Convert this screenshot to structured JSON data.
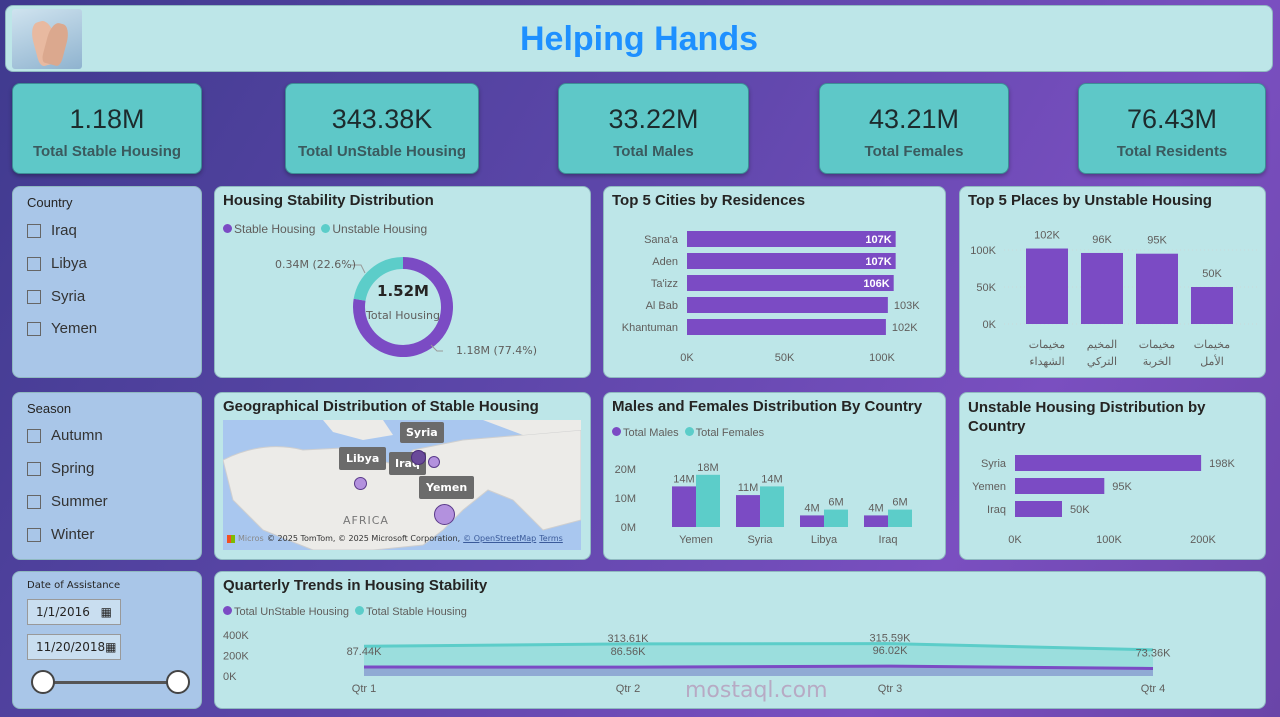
{
  "header": {
    "title": "Helping Hands",
    "logo": "praying-hands-photo"
  },
  "kpis": [
    {
      "value": "1.18M",
      "label": "Total Stable Housing"
    },
    {
      "value": "343.38K",
      "label": "Total UnStable Housing"
    },
    {
      "value": "33.22M",
      "label": "Total Males"
    },
    {
      "value": "43.21M",
      "label": "Total Females"
    },
    {
      "value": "76.43M",
      "label": "Total Residents"
    }
  ],
  "country_slicer": {
    "title": "Country",
    "options": [
      "Iraq",
      "Libya",
      "Syria",
      "Yemen"
    ]
  },
  "season_slicer": {
    "title": "Season",
    "options": [
      "Autumn",
      "Spring",
      "Summer",
      "Winter"
    ]
  },
  "date_slicer": {
    "title": "Date of Assistance",
    "start": "1/1/2016",
    "end": "11/20/2018",
    "icon": "calendar-icon",
    "range_fraction": [
      0,
      1
    ]
  },
  "colors": {
    "purple": "#7b4bc4",
    "teal": "#5ccdc9",
    "title_blue": "#1e90ff",
    "card": "#bde6e8",
    "kpi": "#5ec8c8"
  },
  "map": {
    "title": "Geographical Distribution of Stable Housing",
    "labels": [
      "Syria",
      "Libya",
      "Iraq",
      "Yemen"
    ],
    "africa_label": "AFRICA",
    "attribution": "© 2025 TomTom, © 2025 Microsoft Corporation,",
    "osm": "© OpenStreetMap",
    "terms": "Terms",
    "ms": "Microsoft"
  },
  "watermark": {
    "text": "mostaql.com"
  },
  "chart_data": [
    {
      "type": "pie",
      "title": "Housing Stability Distribution",
      "legend": [
        "Stable Housing",
        "Unstable Housing"
      ],
      "center_value": "1.52M",
      "center_label": "Total Housing",
      "slices": [
        {
          "name": "Stable Housing",
          "value": 1.18,
          "label": "1.18M (77.4%)"
        },
        {
          "name": "Unstable Housing",
          "value": 0.34,
          "label": "0.34M (22.6%)"
        }
      ]
    },
    {
      "type": "bar",
      "orientation": "horizontal",
      "title": "Top 5 Cities by Residences",
      "categories": [
        "Sana'a",
        "Aden",
        "Ta'izz",
        "Al Bab",
        "Khantuman"
      ],
      "values": [
        107,
        107,
        106,
        103,
        102
      ],
      "value_labels": [
        "107K",
        "107K",
        "106K",
        "103K",
        "102K"
      ],
      "xticks": [
        "0K",
        "50K",
        "100K"
      ],
      "xlim": [
        0,
        100
      ]
    },
    {
      "type": "bar",
      "title": "Top 5 Places by Unstable Housing",
      "categories": [
        "مخيمات الشهداء",
        "المخيم التركي",
        "مخيمات الخربة",
        "مخيمات الأمل"
      ],
      "values": [
        102,
        96,
        95,
        50
      ],
      "value_labels": [
        "102K",
        "96K",
        "95K",
        "50K"
      ],
      "yticks": [
        "0K",
        "50K",
        "100K"
      ],
      "ylim": [
        0,
        100
      ]
    },
    {
      "type": "bar",
      "title": "Males and Females Distribution By Country",
      "categories": [
        "Yemen",
        "Syria",
        "Libya",
        "Iraq"
      ],
      "series": [
        {
          "name": "Total Males",
          "values": [
            14,
            11,
            4,
            4
          ],
          "labels": [
            "14M",
            "11M",
            "4M",
            "4M"
          ]
        },
        {
          "name": "Total Females",
          "values": [
            18,
            14,
            6,
            6
          ],
          "labels": [
            "18M",
            "14M",
            "6M",
            "6M"
          ]
        }
      ],
      "yticks": [
        "0M",
        "10M",
        "20M"
      ],
      "ylim": [
        0,
        20
      ]
    },
    {
      "type": "bar",
      "orientation": "horizontal",
      "title": "Unstable Housing Distribution by Country",
      "categories": [
        "Syria",
        "Yemen",
        "Iraq"
      ],
      "values": [
        198,
        95,
        50
      ],
      "value_labels": [
        "198K",
        "95K",
        "50K"
      ],
      "xticks": [
        "0K",
        "100K",
        "200K"
      ],
      "xlim": [
        0,
        200
      ]
    },
    {
      "type": "area",
      "title": "Quarterly Trends in Housing Stability",
      "categories": [
        "Qtr 1",
        "Qtr 2",
        "Qtr 3",
        "Qtr 4"
      ],
      "yticks": [
        "0K",
        "200K",
        "400K"
      ],
      "ylim": [
        0,
        400
      ],
      "series": [
        {
          "name": "Total UnStable Housing",
          "values": [
            87.44,
            86.56,
            96.02,
            73.36
          ],
          "labels": [
            "87.44K",
            "86.56K",
            "96.02K",
            "73.36K"
          ]
        },
        {
          "name": "Total Stable Housing",
          "values": [
            290,
            313.61,
            315.59,
            255
          ],
          "labels": [
            "",
            "313.61K",
            "315.59K",
            ""
          ]
        }
      ]
    }
  ]
}
